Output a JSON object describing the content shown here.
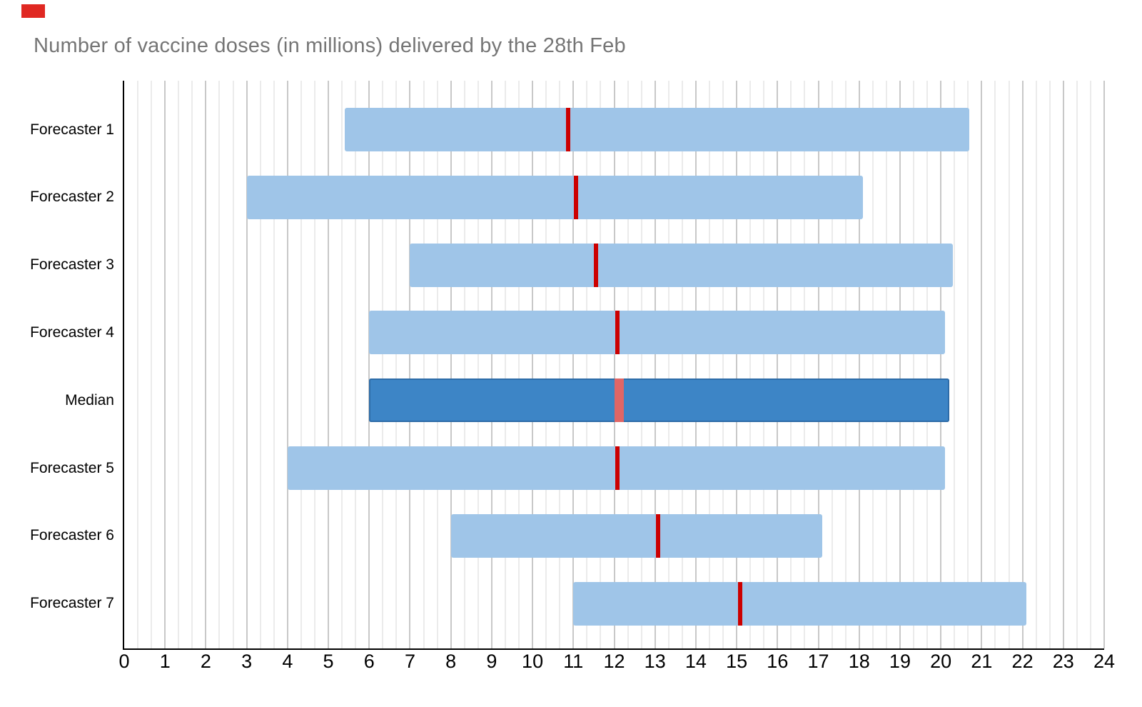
{
  "corner_marker_color": "#e02822",
  "chart_data": {
    "type": "bar",
    "subtype": "horizontal-range-bars-with-point-marker",
    "title": "Number of vaccine doses (in millions) delivered by the 28th Feb",
    "xlabel": "",
    "ylabel": "",
    "xlim": [
      0,
      24
    ],
    "x_ticks": [
      0,
      1,
      2,
      3,
      4,
      5,
      6,
      7,
      8,
      9,
      10,
      11,
      12,
      13,
      14,
      15,
      16,
      17,
      18,
      19,
      20,
      21,
      22,
      23,
      24
    ],
    "major_gridline_step": 1,
    "minor_gridlines_per_major": 2,
    "grid": "vertical-only",
    "legend_position": "none",
    "categories": [
      "Forecaster 1",
      "Forecaster 2",
      "Forecaster 3",
      "Forecaster 4",
      "Median",
      "Forecaster 5",
      "Forecaster 6",
      "Forecaster 7"
    ],
    "series": [
      {
        "label": "Forecaster 1",
        "type": "forecast",
        "range": [
          5.4,
          20.7
        ],
        "marker": 10.88
      },
      {
        "label": "Forecaster 2",
        "type": "forecast",
        "range": [
          3.0,
          18.1
        ],
        "marker": 11.07
      },
      {
        "label": "Forecaster 3",
        "type": "forecast",
        "range": [
          7.0,
          20.3
        ],
        "marker": 11.56
      },
      {
        "label": "Forecaster 4",
        "type": "forecast",
        "range": [
          6.0,
          20.1
        ],
        "marker": 12.08
      },
      {
        "label": "Median",
        "type": "median",
        "range": [
          6.0,
          20.2
        ],
        "marker": 12.13
      },
      {
        "label": "Forecaster 5",
        "type": "forecast",
        "range": [
          4.0,
          20.1
        ],
        "marker": 12.08
      },
      {
        "label": "Forecaster 6",
        "type": "forecast",
        "range": [
          8.0,
          17.1
        ],
        "marker": 13.08
      },
      {
        "label": "Forecaster 7",
        "type": "forecast",
        "range": [
          11.0,
          22.1
        ],
        "marker": 15.08
      }
    ],
    "colors": {
      "range_bar": "#9fc5e8",
      "median_bar": "#3d85c6",
      "median_bar_border": "#2e6ca8",
      "marker": "#cc0000",
      "median_marker": "#e06666",
      "gridline_major": "#c8c8c8",
      "gridline_minor": "#ebebeb",
      "axis": "#000000",
      "title_text": "#757575"
    }
  }
}
